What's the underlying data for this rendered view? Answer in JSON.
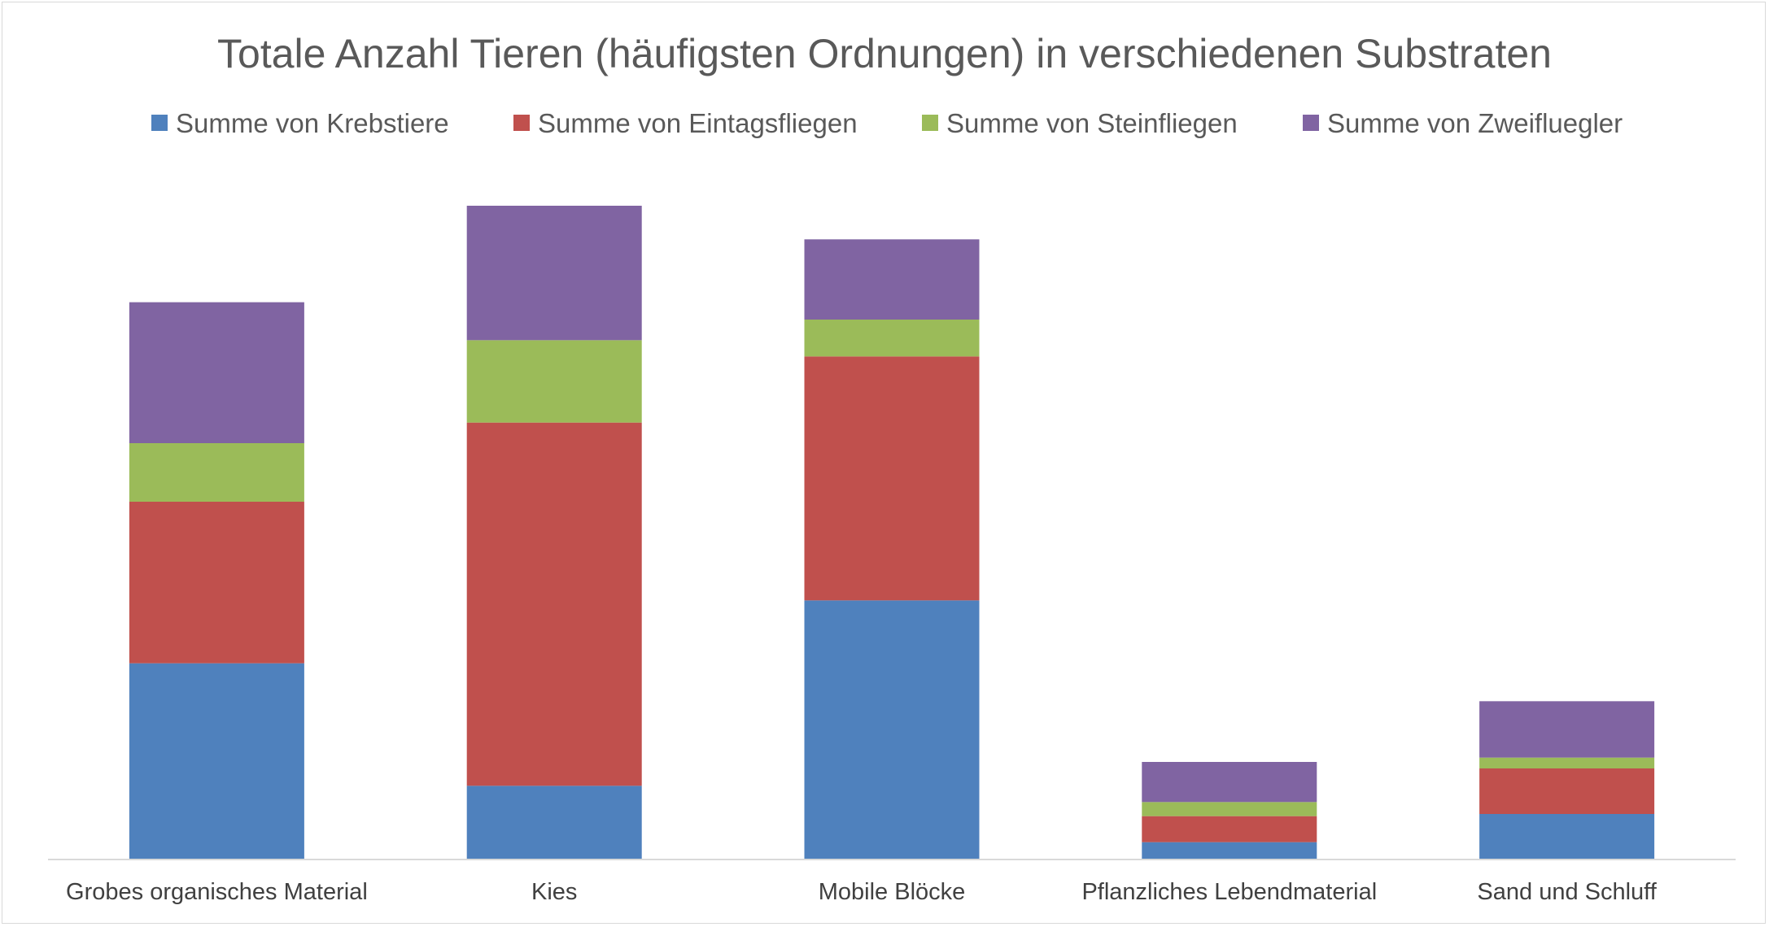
{
  "chart_data": {
    "type": "bar",
    "stacked": true,
    "title": "Totale Anzahl Tieren (häufigsten Ordnungen) in verschiedenen Substraten",
    "xlabel": "",
    "ylabel": "",
    "ylim": [
      0,
      600
    ],
    "grid": false,
    "legend_position": "top",
    "categories": [
      "Grobes organisches Material",
      "Kies",
      "Mobile Blöcke",
      "Pflanzliches Lebendmaterial",
      "Sand und Schluff"
    ],
    "series": [
      {
        "name": "Summe von Krebstiere",
        "color": "#4F81BD",
        "values": [
          181,
          68,
          239,
          16,
          42
        ]
      },
      {
        "name": "Summe von Eintagsfliegen",
        "color": "#C0504D",
        "values": [
          149,
          335,
          225,
          24,
          42
        ]
      },
      {
        "name": "Summe von Steinfliegen",
        "color": "#9BBB59",
        "values": [
          54,
          76,
          34,
          13,
          10
        ]
      },
      {
        "name": "Summe von Zweifluegler",
        "color": "#8064A2",
        "values": [
          130,
          124,
          74,
          37,
          52
        ]
      }
    ]
  }
}
